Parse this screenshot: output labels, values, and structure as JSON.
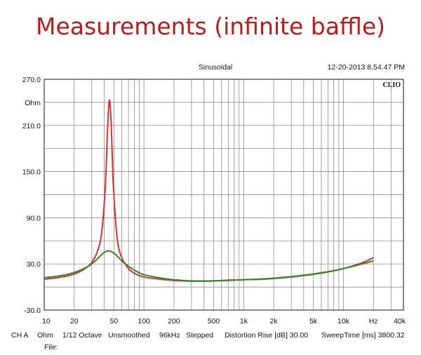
{
  "slide": {
    "title": "Measurements (infinite baffle)"
  },
  "header": {
    "mode": "Sinusoidal",
    "datetime": "12-20-2013 8.54.47 PM",
    "brand": "CLIO"
  },
  "footer": {
    "items": [
      "CH A",
      "Ohm",
      "1/12 Octave",
      "Unsmoothed",
      "96kHz",
      "Stepped",
      "Distortion Rise [dB] 30.00",
      "SweepTime [ms] 3800.32"
    ],
    "file_label": "File:"
  },
  "chart_data": {
    "type": "line",
    "title": "Sinusoidal",
    "xlabel": "Hz",
    "ylabel": "Ohm",
    "xscale": "log",
    "xlim": [
      10,
      40000
    ],
    "ylim": [
      -30,
      270
    ],
    "x_tick_labels": [
      "10",
      "20",
      "50",
      "100",
      "200",
      "500",
      "1k",
      "2k",
      "5k",
      "10k",
      "Hz",
      "40k"
    ],
    "y_tick_labels": [
      "270.0",
      "Ohm",
      "210.0",
      "150.0",
      "90.0",
      "30.0",
      "-30.0"
    ],
    "grid": true,
    "colors": {
      "red": "#e03030",
      "green": "#2c8a2c"
    },
    "series": [
      {
        "color": "red",
        "x": [
          10,
          15,
          20,
          25,
          30,
          35,
          38,
          41,
          43,
          45,
          47,
          49,
          52,
          55,
          60,
          70,
          80,
          100,
          150,
          200,
          300,
          500,
          700,
          1000,
          1500,
          2000,
          3000,
          5000,
          7000,
          10000,
          15000,
          20000
        ],
        "y": [
          10,
          13,
          17,
          23,
          32,
          50,
          75,
          130,
          200,
          243,
          210,
          140,
          85,
          55,
          38,
          24,
          18,
          13,
          10,
          8.5,
          7.5,
          7.8,
          9,
          9.5,
          10,
          11,
          13,
          16.5,
          19.5,
          24,
          31,
          38
        ]
      },
      {
        "color": "green",
        "x": [
          10,
          15,
          20,
          25,
          30,
          35,
          40,
          45,
          50,
          55,
          60,
          70,
          80,
          100,
          150,
          200,
          300,
          500,
          700,
          1000,
          1500,
          2000,
          3000,
          5000,
          7000,
          10000,
          15000,
          20000
        ],
        "y": [
          12,
          15,
          19,
          24,
          30,
          38,
          45,
          47,
          44,
          39,
          34,
          27,
          22,
          16,
          11.5,
          9.5,
          8,
          8,
          8.5,
          9.5,
          10.5,
          11.5,
          13.5,
          17,
          20,
          24,
          29.5,
          34
        ]
      }
    ]
  }
}
